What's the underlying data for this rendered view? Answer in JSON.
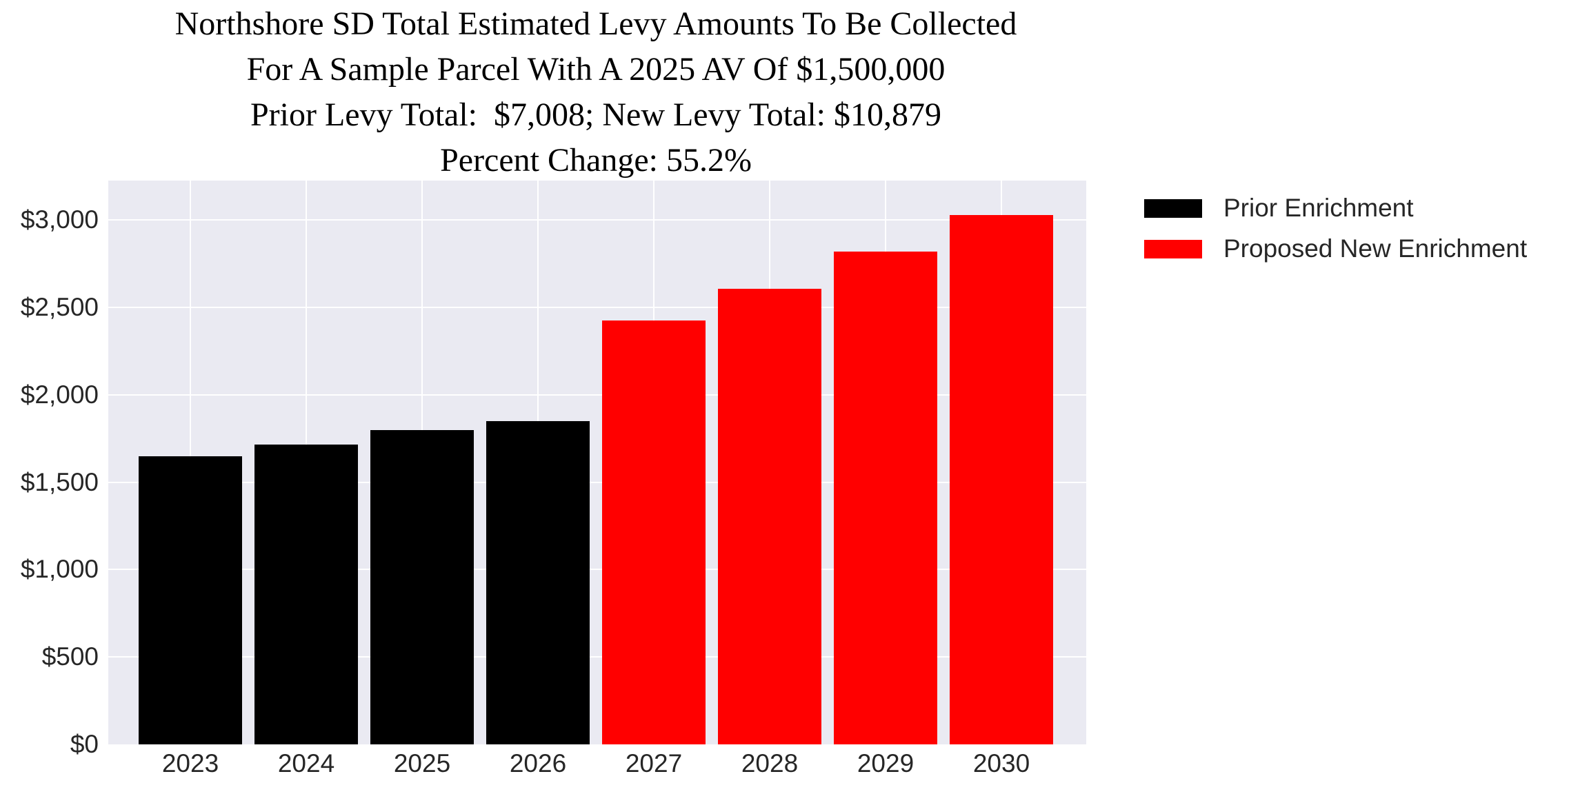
{
  "title": {
    "line1": "Northshore SD Total Estimated Levy Amounts To Be Collected",
    "line2": "For A Sample Parcel With A 2025 AV Of $1,500,000",
    "line3": "Prior Levy Total:  $7,008; New Levy Total: $10,879",
    "line4": "Percent Change: 55.2%"
  },
  "legend": {
    "position": "upper-right-outside-plot",
    "items": [
      {
        "label": "Prior Enrichment",
        "color": "#000000"
      },
      {
        "label": "Proposed New Enrichment",
        "color": "#ff0000"
      }
    ]
  },
  "chart_data": {
    "type": "bar",
    "title": "Northshore SD Total Estimated Levy Amounts To Be Collected\nFor A Sample Parcel With A 2025 AV Of $1,500,000\nPrior Levy Total:  $7,008; New Levy Total: $10,879\nPercent Change: 55.2%",
    "xlabel": "",
    "ylabel": "",
    "categories": [
      "2023",
      "2024",
      "2025",
      "2026",
      "2027",
      "2028",
      "2029",
      "2030"
    ],
    "bar_values": [
      1648,
      1714,
      1796,
      1850,
      2423,
      2608,
      2820,
      3028
    ],
    "bar_colors": [
      "#000000",
      "#000000",
      "#000000",
      "#000000",
      "#ff0000",
      "#ff0000",
      "#ff0000",
      "#ff0000"
    ],
    "series": [
      {
        "name": "Prior Enrichment",
        "color": "#000000",
        "categories": [
          "2023",
          "2024",
          "2025",
          "2026"
        ],
        "values": [
          1648,
          1714,
          1796,
          1850
        ],
        "total_label": "$7,008"
      },
      {
        "name": "Proposed New Enrichment",
        "color": "#ff0000",
        "categories": [
          "2027",
          "2028",
          "2029",
          "2030"
        ],
        "values": [
          2423,
          2608,
          2820,
          3028
        ],
        "total_label": "$10,879"
      }
    ],
    "ylim": [
      0,
      3225
    ],
    "y_ticks": [
      {
        "value": 0,
        "label": "$0"
      },
      {
        "value": 500,
        "label": "$500"
      },
      {
        "value": 1000,
        "label": "$1,000"
      },
      {
        "value": 1500,
        "label": "$1,500"
      },
      {
        "value": 2000,
        "label": "$2,000"
      },
      {
        "value": 2500,
        "label": "$2,500"
      },
      {
        "value": 3000,
        "label": "$3,000"
      }
    ],
    "grid": true,
    "plot_background": "#eaeaf2",
    "gridline_color": "#ffffff",
    "legend_position": "upper right, outside plot"
  }
}
